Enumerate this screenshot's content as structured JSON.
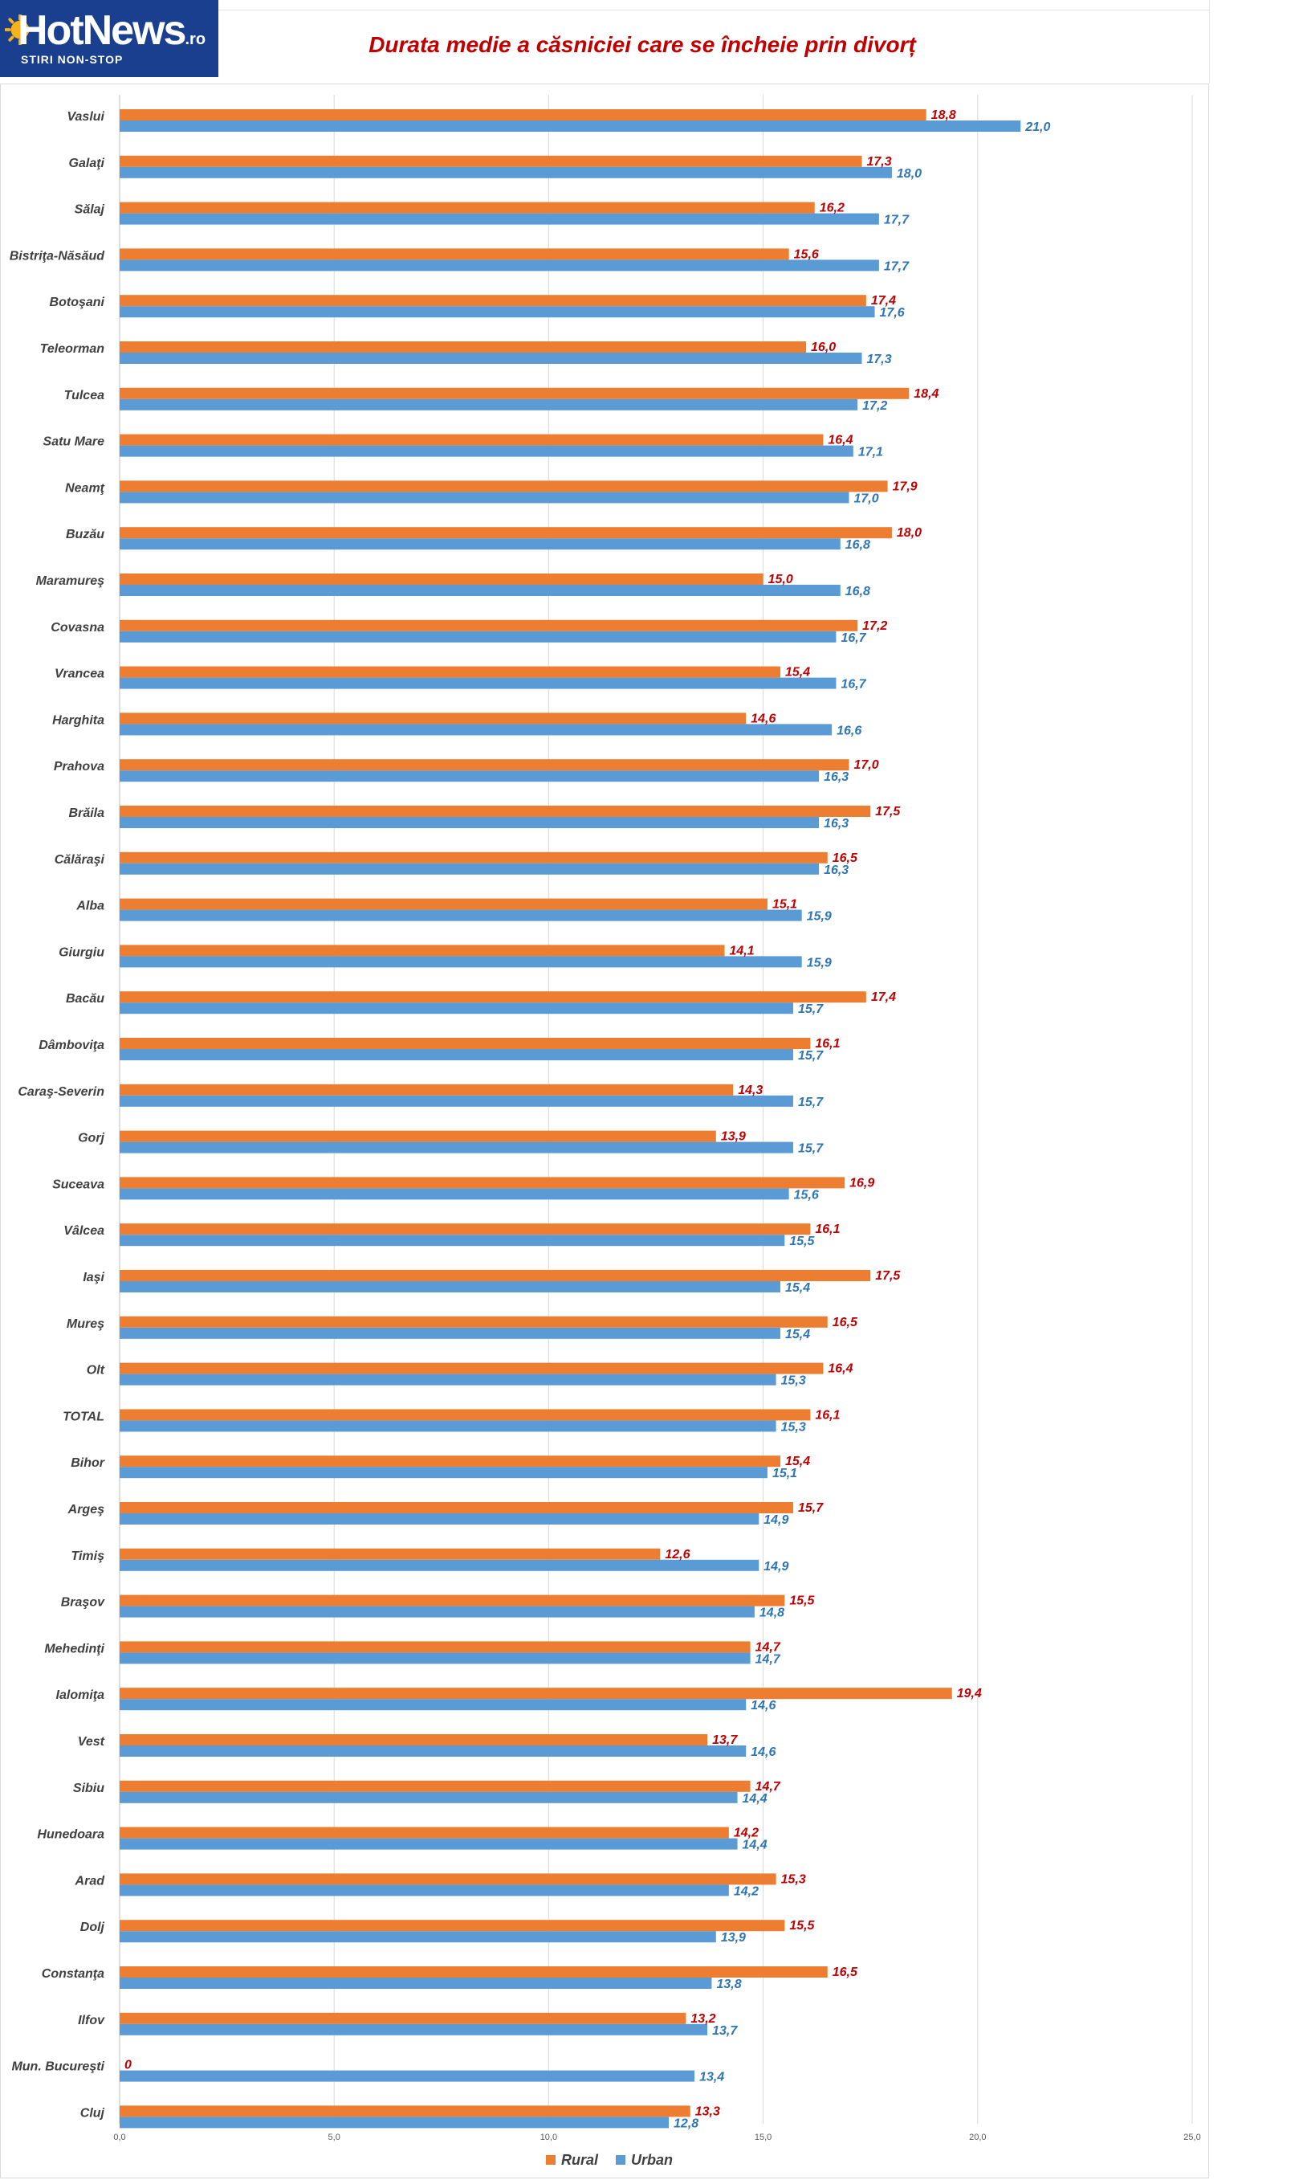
{
  "logo": {
    "brand": "HotNews",
    "tld": ".ro",
    "tagline": "STIRI NON-STOP"
  },
  "colors": {
    "rural": "#ed7d31",
    "urban": "#5b9bd5",
    "rural_label": "#c00000",
    "urban_label": "#2e75b6",
    "title": "#c00000",
    "logo_bg": "#1a3f8f",
    "sun": "#f5b21b"
  },
  "chart_data": {
    "type": "bar",
    "orientation": "horizontal",
    "title": "Durata medie a căsniciei care se încheie prin divorț",
    "xlim": [
      0,
      25
    ],
    "x_ticks": [
      "0,0",
      "5,0",
      "10,0",
      "15,0",
      "20,0",
      "25,0"
    ],
    "grid": true,
    "legend_position": "bottom",
    "categories": [
      "Vaslui",
      "Galaţi",
      "Sălaj",
      "Bistriţa-Năsăud",
      "Botoşani",
      "Teleorman",
      "Tulcea",
      "Satu Mare",
      "Neamţ",
      "Buzău",
      "Maramureş",
      "Covasna",
      "Vrancea",
      "Harghita",
      "Prahova",
      "Brăila",
      "Călăraşi",
      "Alba",
      "Giurgiu",
      "Bacău",
      "Dâmboviţa",
      "Caraş-Severin",
      "Gorj",
      "Suceava",
      "Vâlcea",
      "Iaşi",
      "Mureş",
      "Olt",
      "TOTAL",
      "Bihor",
      "Argeş",
      "Timiş",
      "Braşov",
      "Mehedinţi",
      "Ialomiţa",
      "Vest",
      "Sibiu",
      "Hunedoara",
      "Arad",
      "Dolj",
      "Constanţa",
      "Ilfov",
      "Mun. Bucureşti",
      "Cluj"
    ],
    "series": [
      {
        "name": "Rural",
        "values": [
          18.8,
          17.3,
          16.2,
          15.6,
          17.4,
          16.0,
          18.4,
          16.4,
          17.9,
          18.0,
          15.0,
          17.2,
          15.4,
          14.6,
          17.0,
          17.5,
          16.5,
          15.1,
          14.1,
          17.4,
          16.1,
          14.3,
          13.9,
          16.9,
          16.1,
          17.5,
          16.5,
          16.4,
          16.1,
          15.4,
          15.7,
          12.6,
          15.5,
          14.7,
          19.4,
          13.7,
          14.7,
          14.2,
          15.3,
          15.5,
          16.5,
          13.2,
          0,
          13.3
        ],
        "labels": [
          "18,8",
          "17,3",
          "16,2",
          "15,6",
          "17,4",
          "16,0",
          "18,4",
          "16,4",
          "17,9",
          "18,0",
          "15,0",
          "17,2",
          "15,4",
          "14,6",
          "17,0",
          "17,5",
          "16,5",
          "15,1",
          "14,1",
          "17,4",
          "16,1",
          "14,3",
          "13,9",
          "16,9",
          "16,1",
          "17,5",
          "16,5",
          "16,4",
          "16,1",
          "15,4",
          "15,7",
          "12,6",
          "15,5",
          "14,7",
          "19,4",
          "13,7",
          "14,7",
          "14,2",
          "15,3",
          "15,5",
          "16,5",
          "13,2",
          "0",
          "13,3"
        ]
      },
      {
        "name": "Urban",
        "values": [
          21.0,
          18.0,
          17.7,
          17.7,
          17.6,
          17.3,
          17.2,
          17.1,
          17.0,
          16.8,
          16.8,
          16.7,
          16.7,
          16.6,
          16.3,
          16.3,
          16.3,
          15.9,
          15.9,
          15.7,
          15.7,
          15.7,
          15.7,
          15.6,
          15.5,
          15.4,
          15.4,
          15.3,
          15.3,
          15.1,
          14.9,
          14.9,
          14.8,
          14.7,
          14.6,
          14.6,
          14.4,
          14.4,
          14.2,
          13.9,
          13.8,
          13.7,
          13.4,
          12.8
        ],
        "labels": [
          "21,0",
          "18,0",
          "17,7",
          "17,7",
          "17,6",
          "17,3",
          "17,2",
          "17,1",
          "17,0",
          "16,8",
          "16,8",
          "16,7",
          "16,7",
          "16,6",
          "16,3",
          "16,3",
          "16,3",
          "15,9",
          "15,9",
          "15,7",
          "15,7",
          "15,7",
          "15,7",
          "15,6",
          "15,5",
          "15,4",
          "15,4",
          "15,3",
          "15,3",
          "15,1",
          "14,9",
          "14,9",
          "14,8",
          "14,7",
          "14,6",
          "14,6",
          "14,4",
          "14,4",
          "14,2",
          "13,9",
          "13,8",
          "13,7",
          "13,4",
          "12,8"
        ]
      }
    ]
  }
}
